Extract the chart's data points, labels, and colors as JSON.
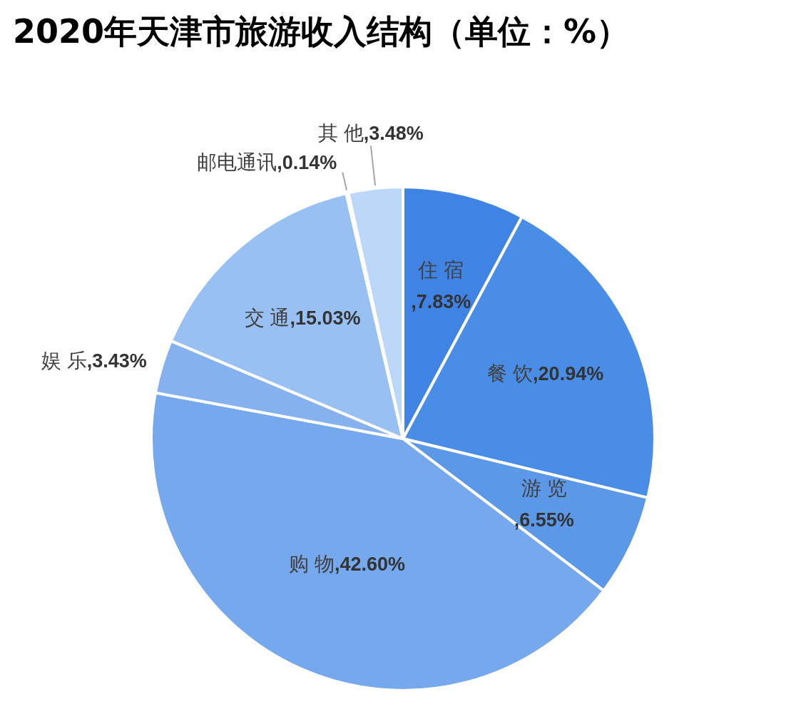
{
  "chart_data": {
    "type": "pie",
    "title": "2020年天津市旅游收入结构（单位：%）",
    "categories": [
      "住 宿",
      "餐 饮",
      "游 览",
      "购 物",
      "娱 乐",
      "交 通",
      "邮电通讯",
      "其 他"
    ],
    "values": [
      7.83,
      20.94,
      6.55,
      42.6,
      3.43,
      15.03,
      0.14,
      3.48
    ],
    "value_labels": [
      ",7.83%",
      ",20.94%",
      ",6.55%",
      ",42.60%",
      ",3.43%",
      ",15.03%",
      ",0.14%",
      ",3.48%"
    ],
    "colors": [
      "#3f84e4",
      "#4a8de6",
      "#5c98e8",
      "#75a8ec",
      "#85b2ee",
      "#98c0f2",
      "#a9cbf4",
      "#bcd7f8"
    ],
    "legend": false
  }
}
